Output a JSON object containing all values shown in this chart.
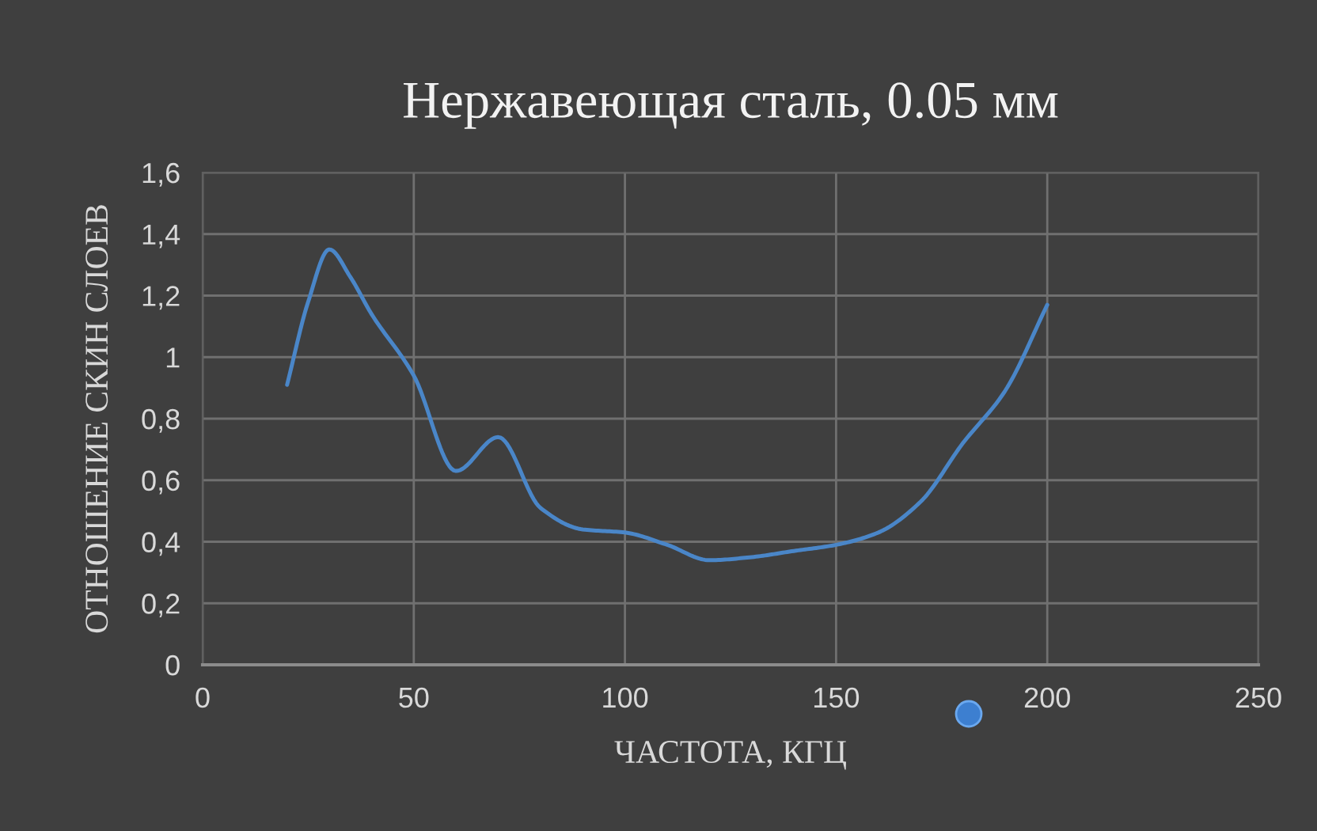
{
  "chart_data": {
    "type": "line",
    "title": "Нержавеющая сталь, 0.05 мм",
    "xlabel": "ЧАСТОТА, КГЦ",
    "ylabel": "ОТНОШЕНИЕ СКИН СЛОЕВ",
    "series": [
      {
        "color": "#4a86c8",
        "x": [
          20,
          25,
          30,
          35,
          40,
          50,
          60,
          70,
          80,
          90,
          100,
          110,
          120,
          130,
          140,
          150,
          160,
          170,
          180,
          190,
          200
        ],
        "values": [
          0.91,
          1.18,
          1.35,
          1.26,
          1.14,
          0.94,
          0.63,
          0.74,
          0.51,
          0.44,
          0.43,
          0.39,
          0.34,
          0.35,
          0.37,
          0.39,
          0.43,
          0.53,
          0.72,
          0.89,
          1.17
        ]
      }
    ],
    "xlim": [
      0,
      250
    ],
    "xticks": [
      0,
      50,
      100,
      150,
      200,
      250
    ],
    "ylim": [
      0,
      1.6
    ],
    "yticks": [
      {
        "value": 0,
        "label": "0"
      },
      {
        "value": 0.2,
        "label": "0,2"
      },
      {
        "value": 0.4,
        "label": "0,4"
      },
      {
        "value": 0.6,
        "label": "0,6"
      },
      {
        "value": 0.8,
        "label": "0,8"
      },
      {
        "value": 1,
        "label": "1"
      },
      {
        "value": 1.2,
        "label": "1,2"
      },
      {
        "value": 1.4,
        "label": "1,4"
      },
      {
        "value": 1.6,
        "label": "1,6"
      }
    ],
    "grid": true,
    "marker": "none",
    "line_style": "solid"
  }
}
